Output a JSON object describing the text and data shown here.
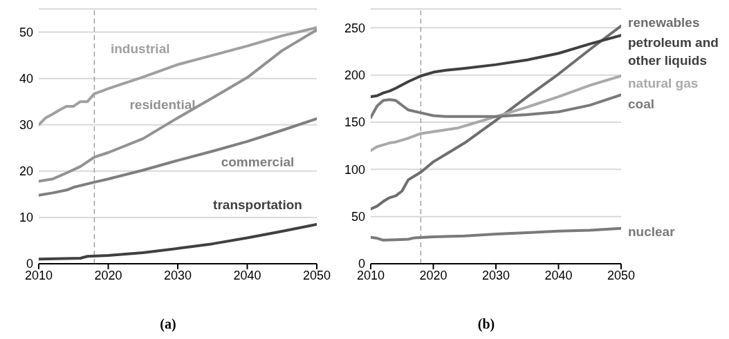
{
  "chart_data": [
    {
      "type": "line",
      "xlabel": "(a)",
      "xlim": [
        2010,
        2050
      ],
      "xticks": [
        2010,
        2020,
        2030,
        2040,
        2050
      ],
      "ylim": [
        0,
        55
      ],
      "yticks": [
        0,
        10,
        20,
        30,
        40,
        50
      ],
      "grid": "y",
      "ref_lines": [
        {
          "axis": "x",
          "value": 2018,
          "color": "#a0a0a0",
          "line_style": "dashed"
        }
      ],
      "series": [
        {
          "name": "industrial",
          "color": "#a0a0a0",
          "x": [
            2010,
            2011,
            2012,
            2013,
            2014,
            2015,
            2016,
            2017,
            2018,
            2020,
            2022,
            2025,
            2030,
            2035,
            2040,
            2045,
            2050
          ],
          "values": [
            30,
            31.5,
            32.3,
            33.2,
            34,
            34,
            35,
            35,
            36.7,
            37.8,
            38.8,
            40.3,
            43,
            45,
            47,
            49.2,
            51
          ]
        },
        {
          "name": "residential",
          "color": "#929292",
          "x": [
            2010,
            2012,
            2014,
            2016,
            2018,
            2020,
            2025,
            2030,
            2035,
            2040,
            2045,
            2050
          ],
          "values": [
            17.8,
            18.3,
            19.6,
            21,
            23,
            24,
            27,
            31.5,
            35.8,
            40.2,
            46,
            50.5
          ]
        },
        {
          "name": "commercial",
          "color": "#7f7f7f",
          "x": [
            2010,
            2012,
            2014,
            2015,
            2018,
            2020,
            2025,
            2030,
            2035,
            2040,
            2045,
            2050
          ],
          "values": [
            14.8,
            15.3,
            15.9,
            16.5,
            17.6,
            18.3,
            20.2,
            22.3,
            24.3,
            26.4,
            28.8,
            31.3
          ]
        },
        {
          "name": "transportation",
          "color": "#404040",
          "x": [
            2010,
            2016,
            2017,
            2020,
            2025,
            2030,
            2035,
            2040,
            2045,
            2050
          ],
          "values": [
            1,
            1.2,
            1.6,
            1.8,
            2.4,
            3.3,
            4.3,
            5.6,
            7,
            8.5
          ]
        }
      ]
    },
    {
      "type": "line",
      "xlabel": "(b)",
      "xlim": [
        2010,
        2050
      ],
      "xticks": [
        2010,
        2020,
        2030,
        2040,
        2050
      ],
      "ylim": [
        0,
        270
      ],
      "yticks": [
        0,
        50,
        100,
        150,
        200,
        250
      ],
      "grid": "y",
      "ref_lines": [
        {
          "axis": "x",
          "value": 2018,
          "color": "#a0a0a0",
          "line_style": "dashed"
        }
      ],
      "series": [
        {
          "name": "renewables",
          "color": "#6e6e6e",
          "x": [
            2010,
            2011,
            2012,
            2013,
            2014,
            2015,
            2016,
            2018,
            2020,
            2022,
            2025,
            2030,
            2035,
            2040,
            2045,
            2050
          ],
          "values": [
            58,
            61,
            66,
            70,
            72,
            77,
            89,
            97,
            108,
            116,
            128,
            152,
            177,
            201,
            227,
            252
          ]
        },
        {
          "name": "petroleum and other liquids",
          "color": "#404040",
          "x": [
            2010,
            2011,
            2012,
            2013,
            2014,
            2016,
            2018,
            2020,
            2022,
            2025,
            2030,
            2035,
            2040,
            2045,
            2050
          ],
          "values": [
            177,
            178,
            181,
            183,
            186,
            193,
            199,
            203,
            205,
            207,
            211,
            216,
            223,
            233,
            242
          ]
        },
        {
          "name": "natural gas",
          "color": "#aaaaaa",
          "x": [
            2010,
            2011,
            2012,
            2013,
            2014,
            2016,
            2018,
            2020,
            2022,
            2024,
            2026,
            2030,
            2035,
            2040,
            2045,
            2050
          ],
          "values": [
            120,
            124,
            126,
            128,
            129,
            133,
            138,
            140,
            142,
            144,
            148,
            156,
            166,
            177,
            189,
            199
          ]
        },
        {
          "name": "coal",
          "color": "#7a7a7a",
          "x": [
            2010,
            2011,
            2012,
            2013,
            2014,
            2016,
            2018,
            2020,
            2022,
            2025,
            2030,
            2035,
            2040,
            2045,
            2050
          ],
          "values": [
            155,
            167,
            173,
            174,
            173,
            163,
            160,
            157,
            156,
            156,
            156,
            158,
            161,
            168,
            179
          ]
        },
        {
          "name": "nuclear",
          "color": "#7a7a7a",
          "x": [
            2010,
            2011,
            2012,
            2014,
            2016,
            2017,
            2020,
            2025,
            2030,
            2035,
            2040,
            2045,
            2050
          ],
          "values": [
            28,
            27,
            25,
            25.5,
            26,
            27.5,
            28.5,
            29.5,
            31.5,
            33,
            34.5,
            35.5,
            37.5
          ]
        }
      ]
    }
  ]
}
